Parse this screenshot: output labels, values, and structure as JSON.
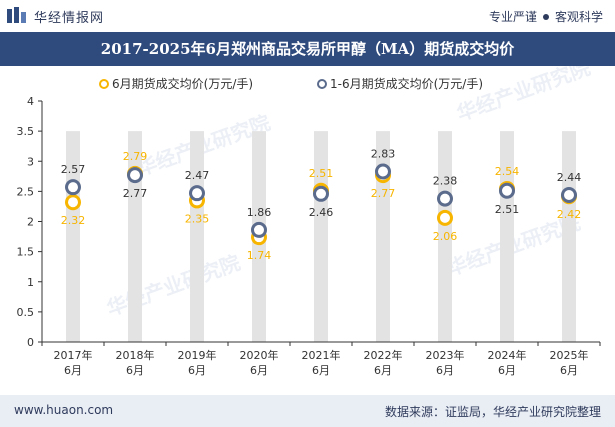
{
  "header": {
    "brand_name": "华经情报网",
    "slogan_left": "专业严谨",
    "slogan_right": "客观科学"
  },
  "footer": {
    "website": "www.huaon.com",
    "source": "数据来源：证监局，华经产业研究院整理"
  },
  "watermark": "华经产业研究院",
  "colors": {
    "title_bg": "#2f4a7d",
    "footer_bg": "#e9edf4",
    "series_june": "#f7b500",
    "series_ytd": "#5a6b8c",
    "column_band": "#e3e3e3"
  },
  "chart_data": {
    "type": "scatter",
    "title": "2017-2025年6月郑州商品交易所甲醇（MA）期货成交均价",
    "categories": [
      "2017年\n6月",
      "2018年\n6月",
      "2019年\n6月",
      "2020年\n6月",
      "2021年\n6月",
      "2022年\n6月",
      "2023年\n6月",
      "2024年\n6月",
      "2025年\n6月"
    ],
    "series": [
      {
        "name": "6月期货成交均价(万元/手)",
        "values": [
          2.32,
          2.79,
          2.35,
          1.74,
          2.51,
          2.77,
          2.06,
          2.54,
          2.42
        ]
      },
      {
        "name": "1-6月期货成交均价(万元/手)",
        "values": [
          2.57,
          2.77,
          2.47,
          1.86,
          2.46,
          2.83,
          2.38,
          2.51,
          2.44
        ]
      }
    ],
    "yticks": [
      "0",
      "0.5",
      "1",
      "1.5",
      "2",
      "2.5",
      "3",
      "3.5",
      "4"
    ],
    "ylim": [
      0,
      4
    ],
    "legend_position": "top-center",
    "grid": false
  }
}
